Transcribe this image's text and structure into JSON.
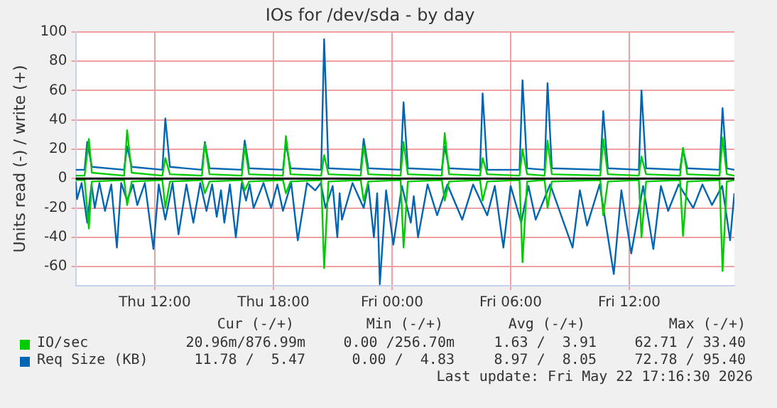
{
  "chart_data": {
    "type": "line",
    "title": "IOs for /dev/sda - by day",
    "ylabel": "Units read (-) / write (+)",
    "xlim": [
      "2026-05-21T08:00",
      "2026-05-22T17:19"
    ],
    "xticks": [
      {
        "value": "2026-05-21T12:00",
        "label": "Thu 12:00"
      },
      {
        "value": "2026-05-21T18:00",
        "label": "Thu 18:00"
      },
      {
        "value": "2026-05-22T00:00",
        "label": "Fri 00:00"
      },
      {
        "value": "2026-05-22T06:00",
        "label": "Fri 06:00"
      },
      {
        "value": "2026-05-22T12:00",
        "label": "Fri 12:00"
      }
    ],
    "ylim": [
      -73,
      100
    ],
    "yticks": [
      -60,
      -40,
      -20,
      0,
      20,
      40,
      60,
      80,
      100
    ],
    "grid": true,
    "legend": "bottom",
    "marker": "none",
    "line_style": "solid",
    "ref_lines": [
      {
        "axis": "y",
        "value": 0,
        "color": "#000000"
      }
    ],
    "series": [
      {
        "name": "IO/sec",
        "color": "#00cc00",
        "type": "line",
        "x": [
          "2026-05-21T08:00",
          "2026-05-21T08:27",
          "2026-05-21T08:40",
          "2026-05-21T08:49",
          "2026-05-21T10:27",
          "2026-05-21T10:36",
          "2026-05-21T10:50",
          "2026-05-21T12:23",
          "2026-05-21T12:32",
          "2026-05-21T12:46",
          "2026-05-21T14:23",
          "2026-05-21T14:32",
          "2026-05-21T14:46",
          "2026-05-21T16:24",
          "2026-05-21T16:33",
          "2026-05-21T16:46",
          "2026-05-21T18:29",
          "2026-05-21T18:38",
          "2026-05-21T18:52",
          "2026-05-21T20:25",
          "2026-05-21T20:34",
          "2026-05-21T20:47",
          "2026-05-21T22:25",
          "2026-05-21T22:34",
          "2026-05-21T22:48",
          "2026-05-22T00:26",
          "2026-05-22T00:35",
          "2026-05-22T00:48",
          "2026-05-22T02:31",
          "2026-05-22T02:40",
          "2026-05-22T02:53",
          "2026-05-22T04:27",
          "2026-05-22T04:35",
          "2026-05-22T04:49",
          "2026-05-22T06:27",
          "2026-05-22T06:36",
          "2026-05-22T06:50",
          "2026-05-22T07:43",
          "2026-05-22T07:52",
          "2026-05-22T08:05",
          "2026-05-22T10:32",
          "2026-05-22T10:41",
          "2026-05-22T10:55",
          "2026-05-22T12:29",
          "2026-05-22T12:37",
          "2026-05-22T12:51",
          "2026-05-22T14:34",
          "2026-05-22T14:43",
          "2026-05-22T14:56",
          "2026-05-22T16:34",
          "2026-05-22T16:43",
          "2026-05-22T16:56",
          "2026-05-22T17:19"
        ],
        "values": [
          2,
          2,
          27,
          4,
          2,
          33,
          4,
          2,
          14,
          3,
          2,
          24,
          3,
          2,
          22,
          3,
          2,
          29,
          3,
          2,
          16,
          3,
          2,
          22,
          3,
          2,
          25,
          3,
          2,
          31,
          3,
          2,
          14,
          3,
          2,
          20,
          3,
          2,
          26,
          3,
          2,
          27,
          3,
          2,
          15,
          3,
          2,
          21,
          3,
          2,
          28,
          3,
          2
        ]
      },
      {
        "color": "#00cc00",
        "type": "line",
        "x": [
          "2026-05-21T08:00",
          "2026-05-21T08:27",
          "2026-05-21T08:40",
          "2026-05-21T08:49",
          "2026-05-21T10:27",
          "2026-05-21T10:36",
          "2026-05-21T10:50",
          "2026-05-21T12:23",
          "2026-05-21T12:32",
          "2026-05-21T12:46",
          "2026-05-21T14:23",
          "2026-05-21T14:32",
          "2026-05-21T14:46",
          "2026-05-21T16:24",
          "2026-05-21T16:33",
          "2026-05-21T16:46",
          "2026-05-21T18:29",
          "2026-05-21T18:38",
          "2026-05-21T18:52",
          "2026-05-21T20:25",
          "2026-05-21T20:34",
          "2026-05-21T20:47",
          "2026-05-21T22:25",
          "2026-05-21T22:34",
          "2026-05-21T22:48",
          "2026-05-22T00:26",
          "2026-05-22T00:35",
          "2026-05-22T00:48",
          "2026-05-22T02:31",
          "2026-05-22T02:40",
          "2026-05-22T02:53",
          "2026-05-22T04:27",
          "2026-05-22T04:35",
          "2026-05-22T04:49",
          "2026-05-22T06:27",
          "2026-05-22T06:36",
          "2026-05-22T06:50",
          "2026-05-22T07:43",
          "2026-05-22T07:52",
          "2026-05-22T08:05",
          "2026-05-22T10:32",
          "2026-05-22T10:41",
          "2026-05-22T10:55",
          "2026-05-22T12:29",
          "2026-05-22T12:37",
          "2026-05-22T12:51",
          "2026-05-22T14:34",
          "2026-05-22T14:43",
          "2026-05-22T14:56",
          "2026-05-22T16:34",
          "2026-05-22T16:43",
          "2026-05-22T16:56",
          "2026-05-22T17:19"
        ],
        "values": [
          -1,
          -1,
          -34,
          -2,
          -1,
          -18,
          -2,
          -1,
          -20,
          -2,
          -1,
          -10,
          -2,
          -1,
          -8,
          -2,
          -1,
          -10,
          -2,
          -1,
          -61,
          -2,
          -1,
          -15,
          -2,
          -1,
          -47,
          -2,
          -1,
          -15,
          -2,
          -1,
          -15,
          -2,
          -1,
          -57,
          -2,
          -1,
          -20,
          -2,
          -1,
          -25,
          -2,
          -1,
          -40,
          -2,
          -1,
          -39,
          -2,
          -1,
          -63,
          -2,
          -1
        ]
      },
      {
        "name": "Req Size (KB)",
        "color": "#0066b3",
        "type": "line",
        "x": [
          "2026-05-21T08:00",
          "2026-05-21T08:27",
          "2026-05-21T08:35",
          "2026-05-21T08:49",
          "2026-05-21T10:27",
          "2026-05-21T10:36",
          "2026-05-21T10:50",
          "2026-05-21T12:23",
          "2026-05-21T12:32",
          "2026-05-21T12:46",
          "2026-05-21T14:23",
          "2026-05-21T14:32",
          "2026-05-21T14:46",
          "2026-05-21T16:24",
          "2026-05-21T16:33",
          "2026-05-21T16:46",
          "2026-05-21T18:29",
          "2026-05-21T18:38",
          "2026-05-21T18:52",
          "2026-05-21T20:25",
          "2026-05-21T20:34",
          "2026-05-21T20:47",
          "2026-05-21T22:25",
          "2026-05-21T22:34",
          "2026-05-21T22:48",
          "2026-05-22T00:26",
          "2026-05-22T00:35",
          "2026-05-22T00:48",
          "2026-05-22T02:31",
          "2026-05-22T02:40",
          "2026-05-22T02:53",
          "2026-05-22T04:27",
          "2026-05-22T04:35",
          "2026-05-22T04:49",
          "2026-05-22T06:27",
          "2026-05-22T06:36",
          "2026-05-22T06:50",
          "2026-05-22T07:43",
          "2026-05-22T07:52",
          "2026-05-22T08:05",
          "2026-05-22T10:32",
          "2026-05-22T10:41",
          "2026-05-22T10:55",
          "2026-05-22T12:29",
          "2026-05-22T12:37",
          "2026-05-22T12:51",
          "2026-05-22T14:34",
          "2026-05-22T14:43",
          "2026-05-22T14:56",
          "2026-05-22T16:34",
          "2026-05-22T16:43",
          "2026-05-22T16:56",
          "2026-05-22T17:19"
        ],
        "values": [
          6,
          6,
          25,
          8,
          6,
          22,
          8,
          6,
          41,
          8,
          6,
          25,
          7,
          6,
          26,
          7,
          6,
          24,
          7,
          6,
          95,
          7,
          6,
          27,
          7,
          6,
          52,
          7,
          6,
          22,
          7,
          6,
          58,
          6,
          6,
          67,
          7,
          6,
          65,
          7,
          6,
          46,
          7,
          6,
          60,
          7,
          6,
          20,
          7,
          6,
          48,
          7,
          6
        ]
      },
      {
        "color": "#0066b3",
        "type": "line",
        "x": [
          "2026-05-21T08:00",
          "2026-05-21T08:04",
          "2026-05-21T08:18",
          "2026-05-21T08:35",
          "2026-05-21T08:48",
          "2026-05-21T08:58",
          "2026-05-21T09:12",
          "2026-05-21T09:29",
          "2026-05-21T09:48",
          "2026-05-21T10:05",
          "2026-05-21T10:18",
          "2026-05-21T10:36",
          "2026-05-21T10:54",
          "2026-05-21T11:07",
          "2026-05-21T11:30",
          "2026-05-21T11:56",
          "2026-05-21T12:12",
          "2026-05-21T12:32",
          "2026-05-21T12:54",
          "2026-05-21T13:12",
          "2026-05-21T13:36",
          "2026-05-21T13:57",
          "2026-05-21T14:18",
          "2026-05-21T14:37",
          "2026-05-21T14:54",
          "2026-05-21T15:08",
          "2026-05-21T15:21",
          "2026-05-21T15:31",
          "2026-05-21T15:48",
          "2026-05-21T16:06",
          "2026-05-21T16:24",
          "2026-05-21T16:37",
          "2026-05-21T16:48",
          "2026-05-21T17:00",
          "2026-05-21T17:30",
          "2026-05-21T17:53",
          "2026-05-21T18:12",
          "2026-05-21T18:29",
          "2026-05-21T18:54",
          "2026-05-21T19:14",
          "2026-05-21T19:42",
          "2026-05-21T20:07",
          "2026-05-21T20:24",
          "2026-05-21T20:38",
          "2026-05-21T21:00",
          "2026-05-21T21:14",
          "2026-05-21T21:21",
          "2026-05-21T21:28",
          "2026-05-21T22:00",
          "2026-05-21T22:34",
          "2026-05-21T22:48",
          "2026-05-21T23:05",
          "2026-05-21T23:15",
          "2026-05-21T23:23",
          "2026-05-21T23:42",
          "2026-05-22T00:04",
          "2026-05-22T00:30",
          "2026-05-22T00:57",
          "2026-05-22T01:06",
          "2026-05-22T01:19",
          "2026-05-22T01:48",
          "2026-05-22T02:17",
          "2026-05-22T02:48",
          "2026-05-22T03:33",
          "2026-05-22T04:06",
          "2026-05-22T04:49",
          "2026-05-22T05:12",
          "2026-05-22T05:38",
          "2026-05-22T06:00",
          "2026-05-22T06:32",
          "2026-05-22T06:54",
          "2026-05-22T07:16",
          "2026-05-22T08:00",
          "2026-05-22T09:08",
          "2026-05-22T09:30",
          "2026-05-22T09:52",
          "2026-05-22T10:30",
          "2026-05-22T11:13",
          "2026-05-22T11:36",
          "2026-05-22T12:06",
          "2026-05-22T12:42",
          "2026-05-22T13:13",
          "2026-05-22T13:36",
          "2026-05-22T13:58",
          "2026-05-22T14:30",
          "2026-05-22T15:14",
          "2026-05-22T15:42",
          "2026-05-22T16:11",
          "2026-05-22T16:42",
          "2026-05-22T17:06",
          "2026-05-22T17:19"
        ],
        "values": [
          -2,
          -14,
          -3,
          -30,
          -4,
          -20,
          -3,
          -22,
          -4,
          -47,
          -3,
          -15,
          -4,
          -18,
          -3,
          -48,
          -4,
          -28,
          -3,
          -38,
          -4,
          -30,
          -3,
          -22,
          -4,
          -26,
          -8,
          -30,
          -4,
          -40,
          -3,
          -15,
          -4,
          -20,
          -3,
          -20,
          -4,
          -22,
          -3,
          -42,
          -3,
          -8,
          -3,
          -20,
          -5,
          -40,
          -10,
          -28,
          -3,
          -20,
          -4,
          -40,
          -10,
          -72,
          -8,
          -45,
          -5,
          -30,
          -12,
          -40,
          -4,
          -25,
          -4,
          -28,
          -4,
          -25,
          -5,
          -47,
          -5,
          -30,
          -5,
          -28,
          -4,
          -47,
          -8,
          -32,
          -4,
          -65,
          -8,
          -51,
          -5,
          -48,
          -5,
          -22,
          -4,
          -20,
          -4,
          -18,
          -5,
          -42,
          -10
        ]
      }
    ],
    "annotations": [
      "Cur (-/+)",
      "Min (-/+)",
      "Avg (-/+)",
      "Max (-/+)",
      "20.96m/876.99m",
      "0.00 /256.70m",
      "1.63 /  3.91",
      "62.71 / 33.40",
      "11.78 /  5.47",
      "0.00 /  4.83",
      "8.97 /  8.05",
      "72.78 / 95.40",
      "Last update: Fri May 22 17:16:30 2026"
    ]
  }
}
